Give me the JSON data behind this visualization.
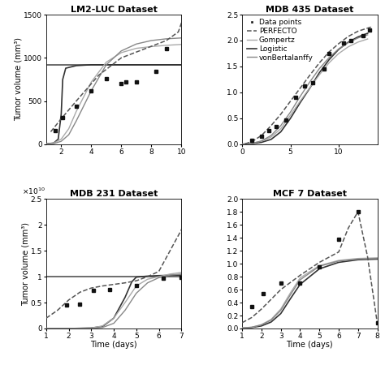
{
  "title_fontsize": 8,
  "label_fontsize": 7,
  "tick_fontsize": 6.5,
  "legend_fontsize": 6.5,
  "lm2": {
    "title": "LM2-LUC Dataset",
    "xlim": [
      1,
      10
    ],
    "ylim": [
      0,
      1500
    ],
    "yticks": [
      0,
      500,
      1000,
      1500
    ],
    "xticks": [
      2,
      4,
      6,
      8,
      10
    ],
    "data_x": [
      1.6,
      2.1,
      3.0,
      4.0,
      5.0,
      6.0,
      6.3,
      7.0,
      8.3,
      9.0
    ],
    "data_y": [
      160,
      305,
      440,
      620,
      760,
      700,
      720,
      720,
      840,
      1110
    ],
    "perfecto_x": [
      1.3,
      2.0,
      3.0,
      4.5,
      6.0,
      7.5,
      9.0,
      9.8,
      10.2
    ],
    "perfecto_y": [
      145,
      295,
      500,
      800,
      1000,
      1100,
      1200,
      1300,
      1500
    ],
    "logistic_x": [
      1.0,
      1.5,
      1.8,
      2.0,
      2.1,
      2.3,
      3.0,
      4.0,
      5.0,
      6.0,
      7.0,
      8.0,
      9.0,
      10.0
    ],
    "logistic_y": [
      5,
      15,
      60,
      350,
      750,
      880,
      910,
      920,
      920,
      920,
      920,
      920,
      920,
      920
    ],
    "gompertz_x": [
      1.0,
      1.5,
      2.0,
      2.5,
      3.0,
      4.0,
      5.0,
      6.0,
      7.0,
      8.0,
      9.0,
      10.0
    ],
    "gompertz_y": [
      2,
      15,
      60,
      180,
      380,
      720,
      950,
      1060,
      1110,
      1130,
      1145,
      1155
    ],
    "vonbert_x": [
      1.0,
      1.5,
      2.0,
      2.5,
      3.0,
      4.0,
      5.0,
      6.0,
      7.0,
      8.0,
      9.0,
      10.0
    ],
    "vonbert_y": [
      1,
      8,
      35,
      110,
      270,
      620,
      920,
      1080,
      1160,
      1200,
      1220,
      1230
    ],
    "hline_y": 920
  },
  "mdb435": {
    "title": "MDB 435 Dataset",
    "xlim": [
      0,
      14
    ],
    "ylim": [
      0,
      2.5
    ],
    "yticks": [
      0,
      0.5,
      1.0,
      1.5,
      2.0,
      2.5
    ],
    "xticks": [
      0,
      5,
      10
    ],
    "data_x": [
      1,
      2,
      2.8,
      3.5,
      4.5,
      5.5,
      6.5,
      7.3,
      8.5,
      9.0,
      10.5,
      11.3,
      12.5,
      13.2
    ],
    "data_y": [
      0.08,
      0.15,
      0.27,
      0.35,
      0.46,
      0.91,
      1.12,
      1.19,
      1.45,
      1.75,
      1.96,
      2.0,
      2.1,
      2.2
    ],
    "perfecto_x": [
      0.3,
      1,
      2,
      3,
      4,
      5,
      6,
      7,
      8,
      9,
      10,
      11,
      12,
      13,
      13.5
    ],
    "perfecto_y": [
      0.01,
      0.05,
      0.17,
      0.36,
      0.58,
      0.83,
      1.08,
      1.33,
      1.57,
      1.78,
      1.94,
      2.08,
      2.18,
      2.24,
      2.27
    ],
    "gompertz_x": [
      0,
      1,
      2,
      3,
      4,
      5,
      6,
      7,
      8,
      9,
      10,
      11,
      12,
      13
    ],
    "gompertz_y": [
      0.005,
      0.02,
      0.06,
      0.14,
      0.3,
      0.56,
      0.83,
      1.09,
      1.34,
      1.57,
      1.75,
      1.88,
      1.97,
      2.03
    ],
    "logistic_x": [
      0,
      1,
      2,
      3,
      4,
      5,
      6,
      7,
      8,
      9,
      10,
      11,
      12,
      13
    ],
    "logistic_y": [
      0.003,
      0.012,
      0.038,
      0.095,
      0.24,
      0.5,
      0.8,
      1.08,
      1.38,
      1.63,
      1.83,
      1.97,
      2.07,
      2.14
    ],
    "vonbert_x": [
      0,
      1,
      2,
      3,
      4,
      5,
      6,
      7,
      8,
      9,
      10,
      11,
      12,
      13
    ],
    "vonbert_y": [
      0.001,
      0.015,
      0.065,
      0.17,
      0.36,
      0.62,
      0.92,
      1.2,
      1.46,
      1.67,
      1.84,
      1.96,
      2.05,
      2.11
    ]
  },
  "mdb231": {
    "title": "MDB 231 Dataset",
    "xlim": [
      1,
      7
    ],
    "ylim": [
      0,
      25000000000.0
    ],
    "yticks": [
      0,
      5000000000.0,
      10000000000.0,
      15000000000.0,
      20000000000.0,
      25000000000.0
    ],
    "yticklabels": [
      "0",
      "0.5",
      "1",
      "1.5",
      "2",
      "2.5"
    ],
    "xticks": [
      1,
      2,
      3,
      4,
      5,
      6,
      7
    ],
    "data_x": [
      1.9,
      2.5,
      3.1,
      3.8,
      5.0,
      6.2,
      7.0
    ],
    "data_y": [
      4500000000.0,
      4700000000.0,
      7300000000.0,
      7500000000.0,
      8300000000.0,
      9700000000.0,
      9800000000.0
    ],
    "perfecto_x": [
      1.0,
      1.5,
      2.0,
      2.5,
      3.0,
      3.5,
      4.0,
      4.5,
      5.0,
      5.5,
      6.0,
      6.5,
      7.0,
      7.2
    ],
    "perfecto_y": [
      2000000000.0,
      3500000000.0,
      5500000000.0,
      7000000000.0,
      7800000000.0,
      8200000000.0,
      8500000000.0,
      8800000000.0,
      9200000000.0,
      10000000000.0,
      11000000000.0,
      15000000000.0,
      19000000000.0,
      22000000000.0
    ],
    "logistic_x": [
      1.0,
      2.0,
      3.0,
      3.5,
      4.0,
      4.5,
      4.8,
      5.0,
      5.5,
      6.0,
      7.0
    ],
    "logistic_y": [
      0,
      0,
      100000000.0,
      400000000.0,
      2000000000.0,
      6000000000.0,
      9000000000.0,
      9900000000.0,
      10100000000.0,
      10200000000.0,
      10300000000.0
    ],
    "gompertz_x": [
      1.0,
      2.0,
      3.0,
      3.5,
      4.0,
      4.5,
      5.0,
      5.5,
      6.0,
      6.5,
      7.0
    ],
    "gompertz_y": [
      0,
      0,
      100000000.0,
      500000000.0,
      2000000000.0,
      5000000000.0,
      8200000000.0,
      9500000000.0,
      10000000000.0,
      10500000000.0,
      10800000000.0
    ],
    "vonbert_x": [
      1.0,
      2.0,
      3.0,
      3.5,
      4.0,
      4.5,
      5.0,
      5.5,
      6.0,
      6.5,
      7.0
    ],
    "vonbert_y": [
      0,
      0,
      30000000.0,
      200000000.0,
      1000000000.0,
      3500000000.0,
      6800000000.0,
      8800000000.0,
      9800000000.0,
      10300000000.0,
      10500000000.0
    ],
    "hline": 10000000000.0
  },
  "mcf7": {
    "title": "MCF 7 Dataset",
    "xlim": [
      1,
      8
    ],
    "ylim": [
      0,
      2.0
    ],
    "yticks": [
      0,
      0.2,
      0.4,
      0.6,
      0.8,
      1.0,
      1.2,
      1.4,
      1.6,
      1.8,
      2.0
    ],
    "xticks": [
      1,
      2,
      3,
      4,
      5,
      6,
      7,
      8
    ],
    "data_x": [
      1.5,
      2.1,
      3.0,
      4.0,
      5.0,
      6.0,
      7.0,
      8.0
    ],
    "data_y": [
      0.34,
      0.54,
      0.7,
      0.7,
      0.95,
      1.37,
      1.8,
      0.09
    ],
    "perfecto_x": [
      1.0,
      1.5,
      2.0,
      3.0,
      4.0,
      5.0,
      6.0,
      6.5,
      7.0,
      7.5,
      8.0
    ],
    "perfecto_y": [
      0.09,
      0.17,
      0.3,
      0.6,
      0.82,
      1.02,
      1.18,
      1.55,
      1.8,
      1.1,
      0.08
    ],
    "logistic_x": [
      1.0,
      1.5,
      2.0,
      2.5,
      3.0,
      3.5,
      4.0,
      5.0,
      6.0,
      7.0,
      8.0
    ],
    "logistic_y": [
      0.005,
      0.015,
      0.04,
      0.1,
      0.23,
      0.46,
      0.68,
      0.92,
      1.02,
      1.06,
      1.07
    ],
    "gompertz_x": [
      1.0,
      1.5,
      2.0,
      2.5,
      3.0,
      3.5,
      4.0,
      5.0,
      6.0,
      7.0,
      8.0
    ],
    "gompertz_y": [
      0.01,
      0.02,
      0.06,
      0.14,
      0.3,
      0.55,
      0.78,
      0.97,
      1.05,
      1.08,
      1.09
    ],
    "vonbert_x": [
      1.0,
      1.5,
      2.0,
      2.5,
      3.0,
      3.5,
      4.0,
      5.0,
      6.0,
      7.0,
      8.0
    ],
    "vonbert_y": [
      0.008,
      0.02,
      0.055,
      0.13,
      0.28,
      0.52,
      0.75,
      0.96,
      1.04,
      1.07,
      1.08
    ]
  },
  "legend": {
    "data_label": "Data points",
    "perfecto_label": "PERFECTO",
    "gompertz_label": "Gompertz",
    "logistic_label": "Logistic",
    "vonbert_label": "vonBertalanffy"
  },
  "colors": {
    "data": "#111111",
    "perfecto": "#555555",
    "gompertz": "#aaaaaa",
    "logistic": "#333333",
    "vonbert": "#888888",
    "hline": "#444444"
  }
}
